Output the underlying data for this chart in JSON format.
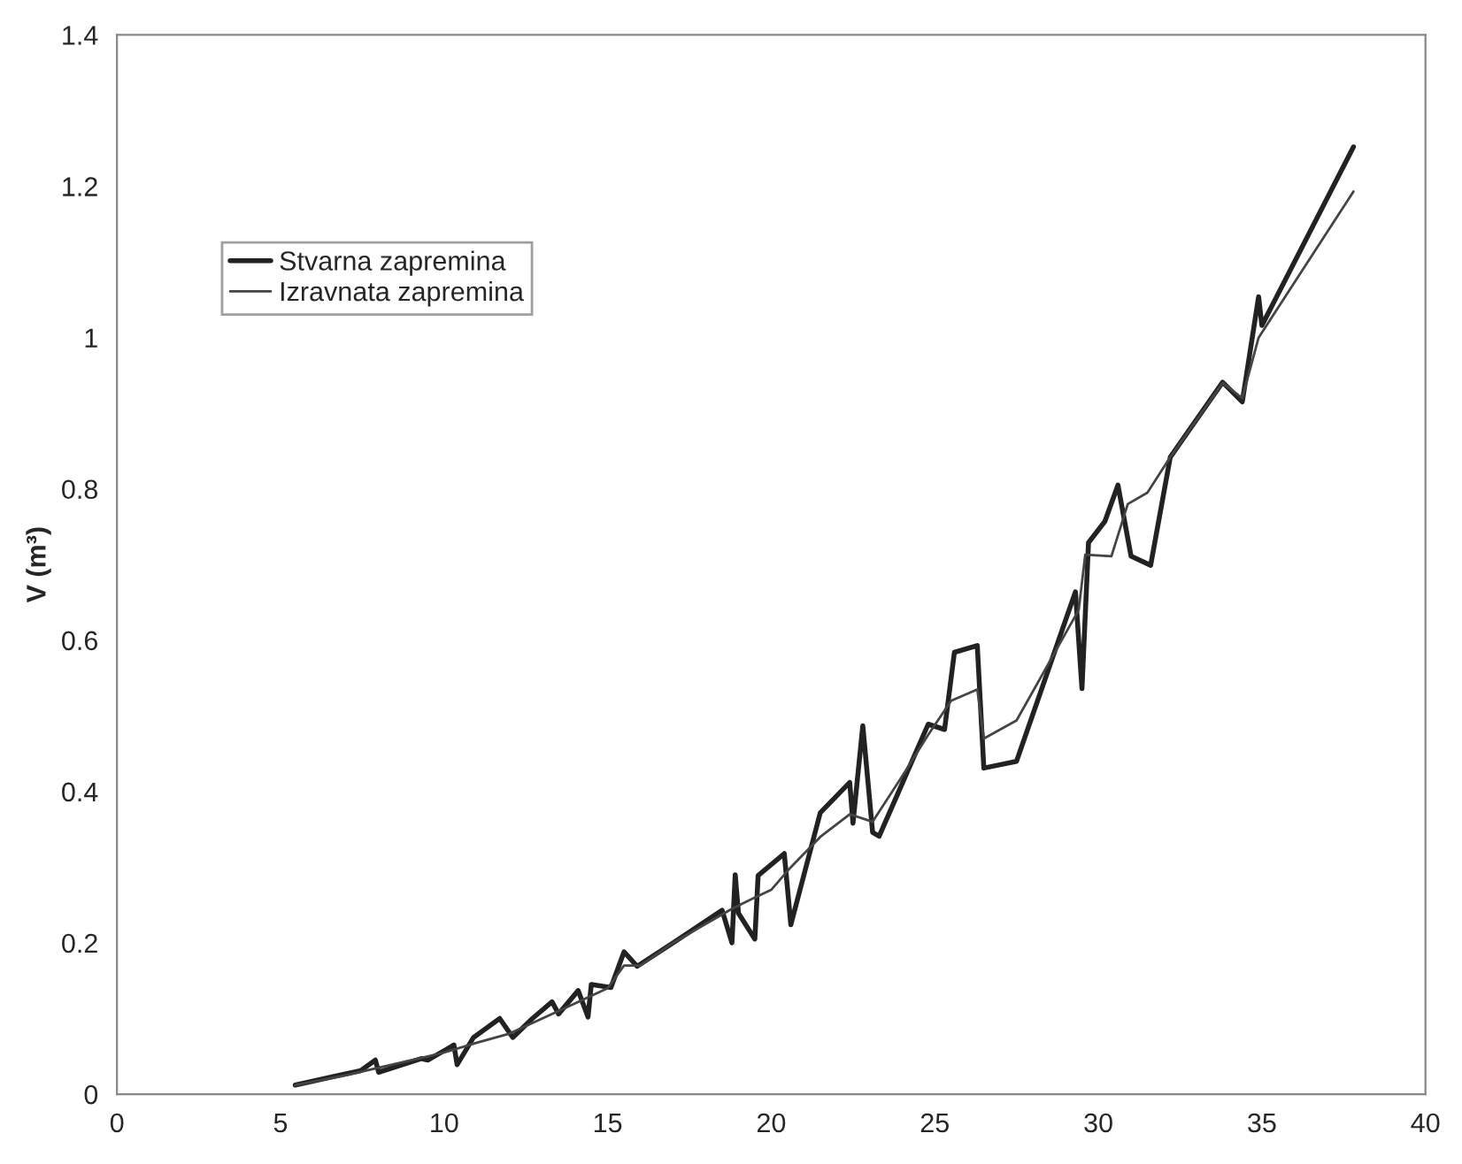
{
  "chart_data": {
    "type": "line",
    "ylabel": "V (m³)",
    "xlim": [
      0,
      40
    ],
    "xticks": [
      0,
      5,
      10,
      15,
      20,
      25,
      30,
      35,
      40
    ],
    "ylim": [
      0,
      1.4
    ],
    "yticks": [
      0,
      0.2,
      0.4,
      0.6,
      0.8,
      1,
      1.2,
      1.4
    ],
    "grid": false,
    "legend": "left",
    "marker": "none",
    "line_style": "solid",
    "series": [
      {
        "name": "Stvarna zapremina",
        "color": "#222222",
        "x": [
          5.45,
          6.7,
          7.45,
          7.9,
          8.0,
          9.3,
          9.5,
          10.3,
          10.4,
          10.9,
          11.7,
          12.1,
          12.7,
          13.3,
          13.5,
          14.1,
          14.4,
          14.5,
          15.1,
          15.5,
          15.9,
          17.0,
          18.5,
          18.8,
          18.9,
          19.0,
          19.5,
          19.6,
          20.4,
          20.6,
          21.5,
          22.4,
          22.5,
          22.8,
          23.1,
          23.3,
          24.8,
          25.3,
          25.6,
          26.3,
          26.5,
          27.5,
          29.3,
          29.5,
          29.7,
          30.2,
          30.6,
          31.0,
          31.6,
          32.2,
          33.8,
          34.4,
          34.9,
          35.0,
          37.8
        ],
        "values": [
          0.012,
          0.024,
          0.031,
          0.045,
          0.029,
          0.047,
          0.045,
          0.065,
          0.039,
          0.075,
          0.1,
          0.075,
          0.1,
          0.122,
          0.106,
          0.137,
          0.102,
          0.145,
          0.141,
          0.188,
          0.169,
          0.2,
          0.243,
          0.2,
          0.29,
          0.239,
          0.205,
          0.289,
          0.318,
          0.224,
          0.372,
          0.412,
          0.358,
          0.487,
          0.346,
          0.341,
          0.489,
          0.482,
          0.584,
          0.593,
          0.431,
          0.44,
          0.664,
          0.536,
          0.729,
          0.757,
          0.805,
          0.711,
          0.699,
          0.842,
          0.941,
          0.915,
          1.054,
          1.016,
          1.252
        ]
      },
      {
        "name": "Izravnata zapremina",
        "color": "#444444",
        "x": [
          5.45,
          7,
          8,
          9,
          10,
          11,
          12,
          13,
          14,
          15,
          15.5,
          16,
          17,
          18,
          18.8,
          19.5,
          20,
          20.6,
          21.5,
          22.4,
          23.1,
          24,
          24.8,
          25.5,
          26.3,
          26.5,
          27.5,
          29.4,
          29.6,
          30.4,
          30.9,
          31.5,
          32.2,
          33.8,
          34.4,
          34.9,
          37.8
        ],
        "values": [
          0.012,
          0.025,
          0.035,
          0.045,
          0.055,
          0.068,
          0.08,
          0.1,
          0.12,
          0.14,
          0.17,
          0.17,
          0.2,
          0.225,
          0.245,
          0.26,
          0.27,
          0.3,
          0.34,
          0.37,
          0.36,
          0.42,
          0.475,
          0.52,
          0.535,
          0.47,
          0.494,
          0.64,
          0.713,
          0.711,
          0.78,
          0.795,
          0.842,
          0.94,
          0.92,
          1.0,
          1.193
        ]
      }
    ]
  }
}
